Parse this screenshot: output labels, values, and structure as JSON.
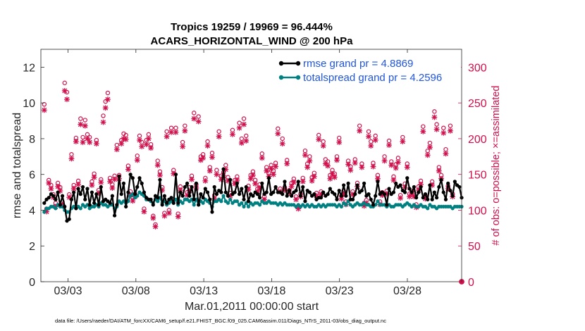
{
  "figure": {
    "title_line1": "Tropics 19259 / 19969 = 96.444%",
    "title_line2": "ACARS_HORIZONTAL_WIND @ 200 hPa",
    "footnote": "data file: /Users/raeder/DAI/ATM_forcXX/CAM6_setup/f.e21.FHIST_BGC.f09_025.CAM6assim.011/Diags_NTrS_2011-03/obs_diag_output.nc"
  },
  "colors": {
    "rmse": "#000000",
    "totalspread": "#008080",
    "obs": "#d0104c",
    "legend_text": "#1f55e0",
    "axis": "#262626"
  },
  "chart_data": {
    "type": "line",
    "xlabel": "Mar.01,2011 00:00:00 start",
    "ylabel_left": "rmse and totalspread",
    "ylabel_right": "# of obs: o=possible; ×=assimilated",
    "x_range_days": [
      1.0,
      32.0
    ],
    "ylim_left": [
      0,
      13
    ],
    "ylim_right": [
      0,
      325
    ],
    "yticks_left": [
      "0",
      "2",
      "4",
      "6",
      "8",
      "10",
      "12"
    ],
    "yticks_left_values": [
      0,
      2,
      4,
      6,
      8,
      10,
      12
    ],
    "yticks_right": [
      "0",
      "50",
      "100",
      "150",
      "200",
      "250",
      "300"
    ],
    "yticks_right_values": [
      0,
      50,
      100,
      150,
      200,
      250,
      300
    ],
    "xticks": [
      "03/03",
      "03/08",
      "03/13",
      "03/18",
      "03/23",
      "03/28"
    ],
    "xticks_days": [
      3,
      8,
      13,
      18,
      23,
      28
    ],
    "legend": [
      {
        "name": "rmse grand pr = 4.8869"
      },
      {
        "name": "totalspread grand pr = 4.2596"
      }
    ],
    "series": [
      {
        "name": "rmse",
        "values": [
          4.4,
          4.6,
          4.7,
          4.9,
          4.8,
          4.6,
          5.0,
          4.3,
          4.8,
          4.2,
          3.4,
          3.5,
          4.6,
          5.0,
          4.1,
          5.2,
          4.9,
          5.3,
          4.6,
          5.2,
          4.3,
          5.0,
          4.4,
          4.9,
          4.3,
          5.3,
          4.5,
          4.6,
          4.5,
          4.4,
          4.8,
          3.7,
          4.3,
          5.9,
          4.9,
          5.5,
          4.2,
          5.0,
          6.0,
          5.8,
          4.9,
          5.3,
          5.8,
          5.5,
          5.0,
          4.7,
          4.6,
          4.6,
          4.3,
          4.8,
          4.7,
          5.7,
          4.3,
          4.8,
          4.4,
          4.6,
          4.7,
          4.4,
          6.0,
          4.4,
          5.0,
          4.8,
          5.3,
          5.5,
          4.8,
          5.3,
          4.6,
          5.5,
          4.3,
          4.9,
          4.7,
          5.2,
          5.0,
          4.6,
          3.9,
          5.3,
          4.9,
          5.1,
          5.0,
          6.3,
          5.0,
          4.8,
          5.7,
          4.9,
          5.0,
          5.5,
          4.9,
          5.2,
          4.6,
          5.3,
          4.5,
          4.9,
          4.8,
          5.0,
          4.9,
          4.7,
          5.5,
          4.9,
          5.0,
          5.8,
          4.9,
          5.0,
          5.3,
          5.0,
          5.0,
          4.9,
          5.6,
          4.8,
          5.1,
          4.8,
          5.0,
          5.1,
          5.6,
          4.8,
          5.3,
          4.5,
          5.1,
          5.0,
          4.8,
          4.9,
          4.6,
          4.7,
          4.7,
          5.0,
          4.8,
          4.9,
          5.2,
          5.0,
          4.9,
          4.6,
          5.1,
          4.8,
          5.4,
          4.8,
          5.5,
          4.6,
          4.6,
          4.9,
          5.4,
          5.0,
          5.1,
          5.5,
          4.8,
          4.9,
          4.6,
          4.3,
          4.8,
          5.6,
          4.9,
          5.0,
          4.9,
          4.3,
          5.2,
          4.9,
          5.0,
          5.5,
          5.3,
          5.4,
          5.1,
          5.0,
          5.8,
          5.2,
          5.0,
          5.3,
          4.7,
          5.0,
          5.3,
          4.7,
          4.9,
          4.6,
          5.4,
          4.6,
          5.0,
          4.7,
          5.3,
          5.7,
          5.0,
          4.6,
          5.5,
          5.1,
          4.8,
          5.6,
          5.4,
          5.3,
          4.7
        ]
      },
      {
        "name": "totalspread",
        "values": [
          3.9,
          4.1,
          4.1,
          4.2,
          4.2,
          4.1,
          4.3,
          4.2,
          4.2,
          4.0,
          3.9,
          3.9,
          4.1,
          4.2,
          4.1,
          4.2,
          4.1,
          4.3,
          4.2,
          4.3,
          4.1,
          4.2,
          4.2,
          4.3,
          4.2,
          4.4,
          4.3,
          4.3,
          4.2,
          4.3,
          4.3,
          4.1,
          4.2,
          4.5,
          4.4,
          4.5,
          4.4,
          4.5,
          4.8,
          4.9,
          4.7,
          4.8,
          5.0,
          4.9,
          4.8,
          4.6,
          4.6,
          4.5,
          4.4,
          4.6,
          4.5,
          4.7,
          4.4,
          4.5,
          4.3,
          4.4,
          4.5,
          4.4,
          4.6,
          4.3,
          4.5,
          4.4,
          4.6,
          4.6,
          4.5,
          4.6,
          4.3,
          4.6,
          4.3,
          4.5,
          4.4,
          4.6,
          4.5,
          4.4,
          4.2,
          4.5,
          4.5,
          4.6,
          4.5,
          4.8,
          4.5,
          4.4,
          4.6,
          4.4,
          4.5,
          4.5,
          4.3,
          4.4,
          4.2,
          4.4,
          4.2,
          4.4,
          4.3,
          4.4,
          4.4,
          4.3,
          4.5,
          4.4,
          4.4,
          4.5,
          4.4,
          4.4,
          4.4,
          4.3,
          4.4,
          4.3,
          4.4,
          4.3,
          4.3,
          4.3,
          4.3,
          4.2,
          4.3,
          4.2,
          4.3,
          4.2,
          4.3,
          4.2,
          4.3,
          4.2,
          4.2,
          4.3,
          4.2,
          4.3,
          4.2,
          4.3,
          4.3,
          4.3,
          4.3,
          4.2,
          4.3,
          4.2,
          4.4,
          4.3,
          4.5,
          4.3,
          4.2,
          4.3,
          4.4,
          4.3,
          4.3,
          4.4,
          4.3,
          4.3,
          4.2,
          4.2,
          4.3,
          4.5,
          4.3,
          4.3,
          4.3,
          4.2,
          4.3,
          4.2,
          4.2,
          4.3,
          4.3,
          4.3,
          4.2,
          4.3,
          4.4,
          4.3,
          4.2,
          4.3,
          4.2,
          4.2,
          4.3,
          4.2,
          4.2,
          4.1,
          4.3,
          4.2,
          4.2,
          4.1,
          4.2,
          4.2,
          4.2,
          4.2,
          4.2,
          4.2,
          4.1,
          4.2,
          4.2,
          4.2,
          4.2
        ]
      },
      {
        "name": "obs_possible",
        "values": [
          248,
          102,
          142,
          135,
          122,
          110,
          138,
          132,
          112,
          278,
          265,
          122,
          178,
          135,
          201,
          141,
          228,
          202,
          226,
          206,
          202,
          140,
          151,
          198,
          128,
          143,
          232,
          252,
          264,
          145,
          136,
          148,
          191,
          149,
          198,
          207,
          205,
          162,
          126,
          118,
          123,
          176,
          204,
          195,
          102,
          198,
          206,
          192,
          92,
          80,
          169,
          154,
          132,
          96,
          210,
          100,
          215,
          156,
          215,
          95,
          133,
          195,
          218,
          125,
          132,
          148,
          236,
          136,
          231,
          175,
          178,
          145,
          196,
          160,
          180,
          121,
          156,
          210,
          148,
          153,
          163,
          146,
          124,
          212,
          142,
          147,
          222,
          200,
          228,
          204,
          134,
          149,
          154,
          142,
          130,
          136,
          179,
          119,
          160,
          152,
          163,
          155,
          166,
          214,
          130,
          200,
          132,
          170,
          128,
          138,
          144,
          119,
          106,
          123,
          145,
          183,
          165,
          175,
          146,
          152,
          124,
          205,
          126,
          196,
          171,
          168,
          149,
          156,
          151,
          175,
          201,
          120,
          127,
          112,
          169,
          161,
          126,
          171,
          138,
          218,
          165,
          110,
          114,
          210,
          196,
          166,
          204,
          149,
          112,
          125,
          175,
          127,
          197,
          168,
          147,
          164,
          173,
          121,
          202,
          137,
          165,
          123,
          127,
          123,
          108,
          133,
          141,
          217,
          120,
          183,
          194,
          140,
          238,
          220,
          160,
          149,
          215,
          185,
          134,
          218,
          123
        ]
      },
      {
        "name": "obs_assimilated",
        "values": [
          240,
          98,
          138,
          130,
          118,
          105,
          133,
          127,
          108,
          267,
          255,
          118,
          172,
          130,
          196,
          136,
          220,
          195,
          218,
          200,
          195,
          135,
          146,
          193,
          124,
          139,
          223,
          243,
          255,
          140,
          131,
          143,
          185,
          144,
          193,
          200,
          199,
          157,
          121,
          113,
          119,
          170,
          198,
          189,
          98,
          192,
          200,
          187,
          89,
          77,
          163,
          149,
          128,
          92,
          203,
          96,
          209,
          151,
          209,
          91,
          128,
          189,
          211,
          121,
          127,
          143,
          228,
          131,
          224,
          170,
          173,
          141,
          190,
          155,
          174,
          116,
          150,
          203,
          143,
          148,
          157,
          141,
          120,
          206,
          137,
          142,
          215,
          194,
          220,
          197,
          129,
          144,
          149,
          137,
          126,
          131,
          173,
          115,
          155,
          147,
          158,
          150,
          161,
          207,
          126,
          193,
          128,
          165,
          124,
          133,
          139,
          115,
          102,
          119,
          140,
          177,
          160,
          169,
          141,
          147,
          120,
          199,
          122,
          190,
          165,
          162,
          144,
          151,
          146,
          170,
          195,
          116,
          123,
          108,
          164,
          156,
          122,
          166,
          133,
          211,
          160,
          106,
          110,
          203,
          190,
          161,
          198,
          144,
          108,
          121,
          169,
          123,
          191,
          163,
          142,
          159,
          167,
          117,
          196,
          132,
          160,
          119,
          123,
          119,
          104,
          128,
          136,
          210,
          116,
          177,
          188,
          135,
          230,
          213,
          155,
          144,
          208,
          179,
          130,
          211,
          119
        ]
      }
    ]
  }
}
